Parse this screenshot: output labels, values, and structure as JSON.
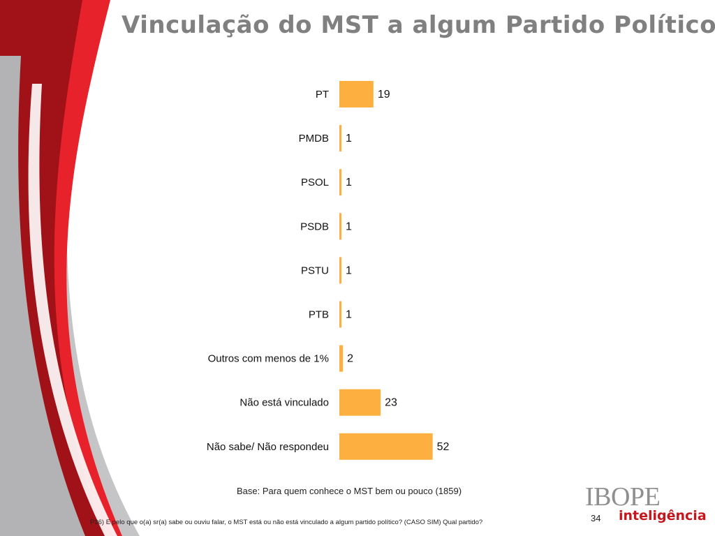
{
  "title": "Vinculação do MST a algum Partido Político",
  "base_note": "Base: Para quem conhece o MST bem ou pouco (1859)",
  "question": "P36) E pelo que o(a) sr(a) sabe ou ouviu falar, o MST está ou não está vinculado a algum partido político? (CASO SIM) Qual partido?",
  "page_number": "34",
  "logo": {
    "brand": "IBOPE",
    "sub": "inteligência"
  },
  "colors": {
    "bar": "#FDB040",
    "accent_red": "#C4161C",
    "title_gray": "#808080"
  },
  "chart_data": {
    "type": "bar",
    "orientation": "horizontal",
    "categories": [
      "PT",
      "PMDB",
      "PSOL",
      "PSDB",
      "PSTU",
      "PTB",
      "Outros com menos de 1%",
      "Não está vinculado",
      "Não sabe/ Não respondeu"
    ],
    "values": [
      19,
      1,
      1,
      1,
      1,
      1,
      2,
      23,
      52
    ],
    "data_labels": [
      "19",
      "1",
      "1",
      "1",
      "1",
      "1",
      "2",
      "23",
      "52"
    ],
    "xlim": [
      0,
      100
    ],
    "grid": false,
    "legend": false
  }
}
